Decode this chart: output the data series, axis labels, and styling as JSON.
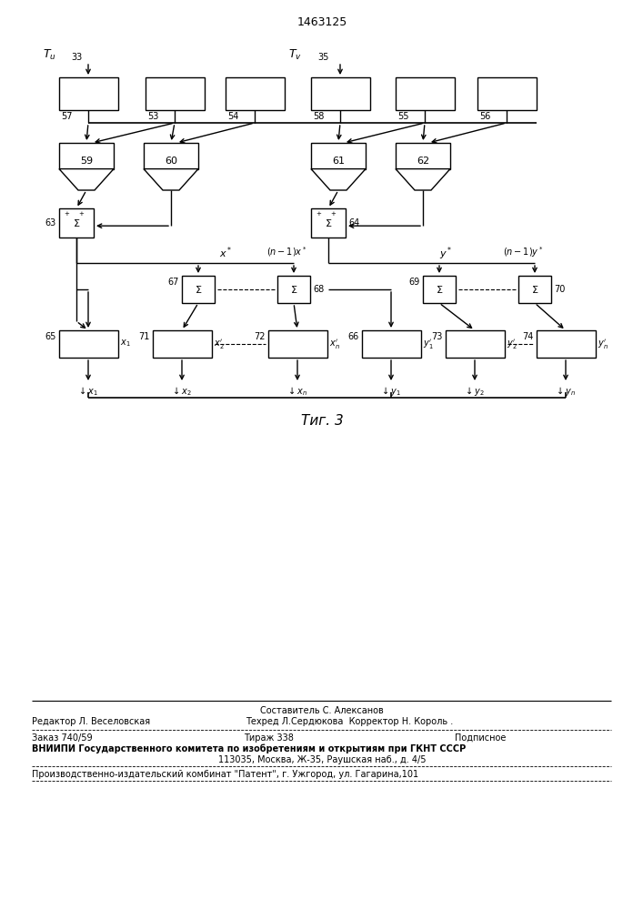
{
  "title": "1463125",
  "fig_label": "Τиг. 3",
  "background_color": "#ffffff",
  "line_color": "#000000",
  "footer": {
    "line1_center": "Составитель С. Алексанов",
    "line1_left": "Редактор Л. Веселовская",
    "line1_right": "Техред Л.Сердюкова  Корректор Н. Король .",
    "line2_left": "Заказ 740/59",
    "line2_center": "Тираж 338",
    "line2_right": "Подписное",
    "line3": "ВНИИПИ Государственного комитета по изобретениям и открытиям при ГКНТ СССР",
    "line4": "113035, Москва, Ж-35, Раушская наб., д. 4/5",
    "line5": "Производственно-издательский комбинат \"Патент\", г. Ужгород, ул. Гагарина,101"
  }
}
